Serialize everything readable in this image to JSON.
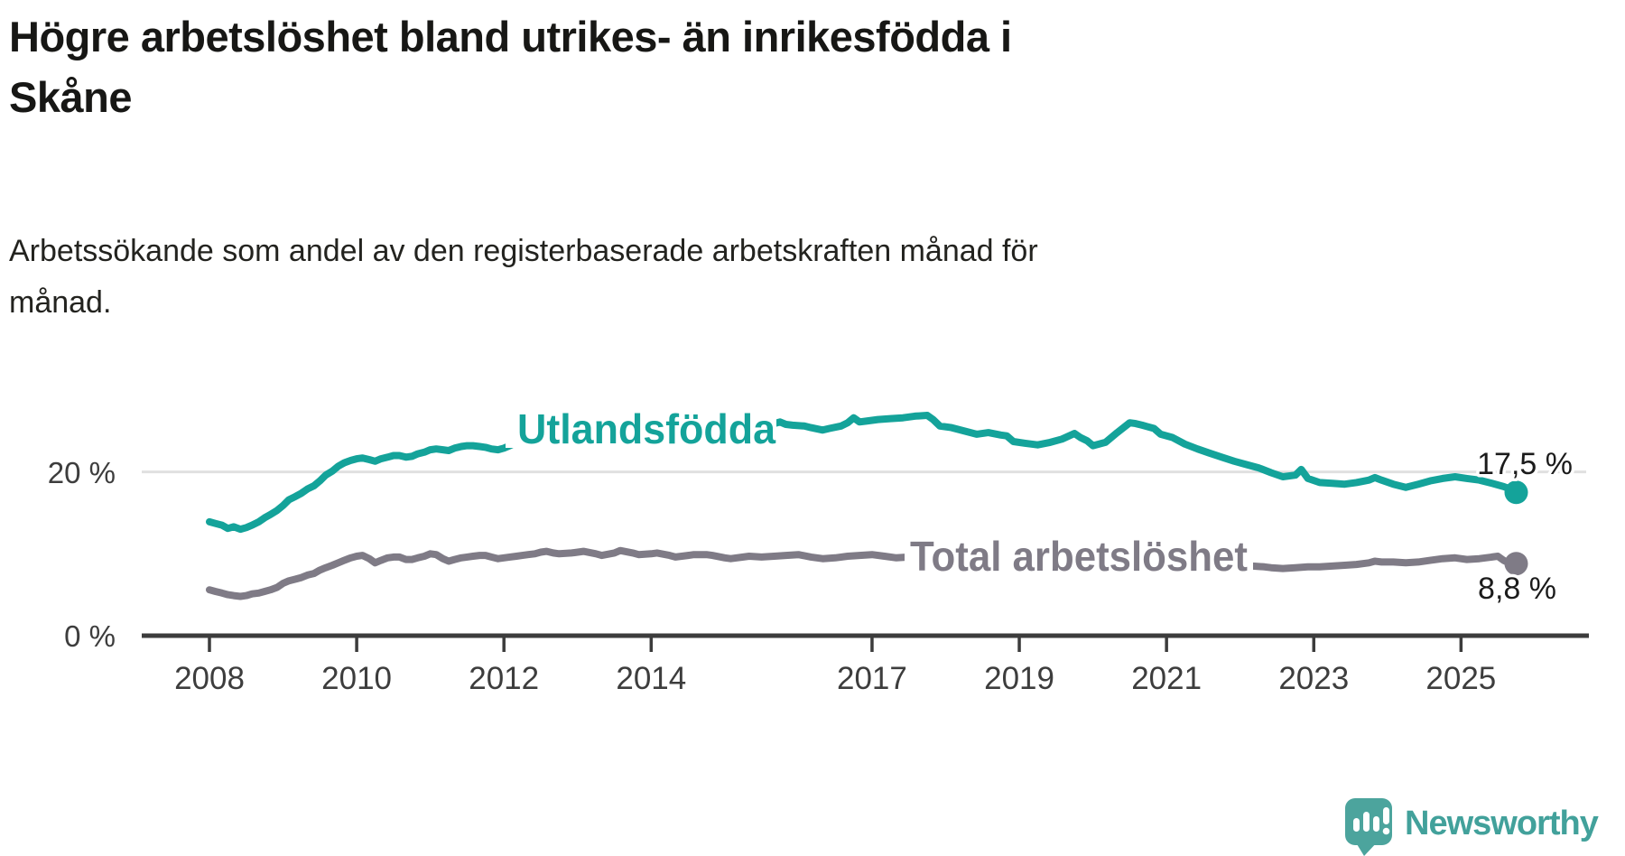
{
  "title_lines": [
    "Högre arbetslöshet bland utrikes- än inrikesfödda i",
    "Skåne"
  ],
  "subtitle_lines": [
    "Arbetssökande som andel av den registerbaserade arbetskraften månad för",
    "månad."
  ],
  "branding": {
    "logo_text": "Newsworthy",
    "logo_icon": "newsworthy-speech-bubble-bar-chart-icon",
    "logo_color": "#4ca49d",
    "logo_text_color": "#42a19b"
  },
  "colors": {
    "accent_teal": "#14a39a",
    "neutral_gray": "#7f7b86",
    "gridline": "#e0e0e0",
    "axis": "#3c3c3c",
    "value_label": "#1b1b1b"
  },
  "chart_data": {
    "type": "line",
    "title": "Högre arbetslöshet bland utrikes- än inrikesfödda i Skåne",
    "subtitle": "Arbetssökande som andel av den registerbaserade arbetskraften månad för månad.",
    "unit": "%",
    "x_tick_labels": [
      "2008",
      "2010",
      "2012",
      "2014",
      "2017",
      "2019",
      "2021",
      "2023",
      "2025"
    ],
    "y_tick_labels": [
      "0 %",
      "20 %"
    ],
    "y_ticks": [
      0,
      20
    ],
    "x_range_years": [
      2008.0,
      2025.75
    ],
    "ylim": [
      0,
      30
    ],
    "grid": "single horizontal gridline at 20 %",
    "legend_position": "labels inline on lines, value labels at line ends",
    "series": [
      {
        "name": "Utlandsfödda",
        "color": "#14a39a",
        "end_label": "17,5 %",
        "end_value": 17.5,
        "points": [
          [
            2008.0,
            13.9
          ],
          [
            2008.08,
            13.7
          ],
          [
            2008.17,
            13.5
          ],
          [
            2008.25,
            13.1
          ],
          [
            2008.33,
            13.3
          ],
          [
            2008.42,
            13.0
          ],
          [
            2008.5,
            13.2
          ],
          [
            2008.58,
            13.5
          ],
          [
            2008.67,
            13.9
          ],
          [
            2008.75,
            14.4
          ],
          [
            2008.83,
            14.8
          ],
          [
            2008.92,
            15.3
          ],
          [
            2009.0,
            15.9
          ],
          [
            2009.08,
            16.6
          ],
          [
            2009.17,
            17.0
          ],
          [
            2009.25,
            17.4
          ],
          [
            2009.33,
            17.9
          ],
          [
            2009.42,
            18.3
          ],
          [
            2009.5,
            18.9
          ],
          [
            2009.58,
            19.6
          ],
          [
            2009.67,
            20.1
          ],
          [
            2009.75,
            20.7
          ],
          [
            2009.83,
            21.1
          ],
          [
            2009.92,
            21.4
          ],
          [
            2010.0,
            21.6
          ],
          [
            2010.08,
            21.7
          ],
          [
            2010.17,
            21.5
          ],
          [
            2010.25,
            21.3
          ],
          [
            2010.33,
            21.6
          ],
          [
            2010.42,
            21.8
          ],
          [
            2010.5,
            22.0
          ],
          [
            2010.58,
            22.0
          ],
          [
            2010.67,
            21.8
          ],
          [
            2010.75,
            21.9
          ],
          [
            2010.83,
            22.2
          ],
          [
            2010.92,
            22.4
          ],
          [
            2011.0,
            22.7
          ],
          [
            2011.08,
            22.8
          ],
          [
            2011.17,
            22.7
          ],
          [
            2011.25,
            22.6
          ],
          [
            2011.33,
            22.9
          ],
          [
            2011.42,
            23.1
          ],
          [
            2011.5,
            23.2
          ],
          [
            2011.58,
            23.2
          ],
          [
            2011.67,
            23.1
          ],
          [
            2011.75,
            23.0
          ],
          [
            2011.83,
            22.8
          ],
          [
            2011.92,
            22.7
          ],
          [
            2012.0,
            22.9
          ],
          [
            2012.08,
            23.2
          ],
          [
            2012.17,
            23.6
          ],
          [
            2012.25,
            24.0
          ],
          [
            2012.33,
            24.3
          ],
          [
            2012.42,
            24.2
          ],
          [
            2012.5,
            24.0
          ],
          [
            2012.58,
            23.9
          ],
          [
            2012.67,
            23.8
          ],
          [
            2012.83,
            24.0
          ],
          [
            2013.0,
            24.3
          ],
          [
            2013.17,
            24.5
          ],
          [
            2013.33,
            24.3
          ],
          [
            2013.5,
            24.1
          ],
          [
            2013.67,
            24.3
          ],
          [
            2013.83,
            24.6
          ],
          [
            2014.0,
            24.4
          ],
          [
            2014.17,
            24.0
          ],
          [
            2014.33,
            23.6
          ],
          [
            2014.42,
            23.4
          ],
          [
            2014.58,
            23.8
          ],
          [
            2014.75,
            24.4
          ],
          [
            2014.92,
            24.8
          ],
          [
            2015.08,
            25.0
          ],
          [
            2015.25,
            25.2
          ],
          [
            2015.42,
            25.4
          ],
          [
            2015.58,
            25.7
          ],
          [
            2015.67,
            25.9
          ],
          [
            2015.75,
            26.1
          ],
          [
            2015.83,
            25.8
          ],
          [
            2015.92,
            25.7
          ],
          [
            2016.08,
            25.6
          ],
          [
            2016.17,
            25.4
          ],
          [
            2016.33,
            25.1
          ],
          [
            2016.42,
            25.3
          ],
          [
            2016.58,
            25.6
          ],
          [
            2016.67,
            26.0
          ],
          [
            2016.75,
            26.6
          ],
          [
            2016.83,
            26.1
          ],
          [
            2016.92,
            26.2
          ],
          [
            2017.08,
            26.4
          ],
          [
            2017.25,
            26.5
          ],
          [
            2017.42,
            26.6
          ],
          [
            2017.58,
            26.8
          ],
          [
            2017.75,
            26.9
          ],
          [
            2017.83,
            26.4
          ],
          [
            2017.92,
            25.6
          ],
          [
            2018.08,
            25.4
          ],
          [
            2018.25,
            25.0
          ],
          [
            2018.42,
            24.6
          ],
          [
            2018.58,
            24.8
          ],
          [
            2018.75,
            24.5
          ],
          [
            2018.83,
            24.4
          ],
          [
            2018.92,
            23.7
          ],
          [
            2019.08,
            23.5
          ],
          [
            2019.25,
            23.3
          ],
          [
            2019.42,
            23.6
          ],
          [
            2019.58,
            24.0
          ],
          [
            2019.75,
            24.7
          ],
          [
            2019.83,
            24.2
          ],
          [
            2019.92,
            23.8
          ],
          [
            2020.0,
            23.2
          ],
          [
            2020.17,
            23.6
          ],
          [
            2020.33,
            24.8
          ],
          [
            2020.5,
            26.0
          ],
          [
            2020.58,
            25.9
          ],
          [
            2020.67,
            25.7
          ],
          [
            2020.83,
            25.3
          ],
          [
            2020.92,
            24.6
          ],
          [
            2021.08,
            24.2
          ],
          [
            2021.25,
            23.4
          ],
          [
            2021.42,
            22.8
          ],
          [
            2021.58,
            22.3
          ],
          [
            2021.75,
            21.8
          ],
          [
            2021.92,
            21.3
          ],
          [
            2022.08,
            20.9
          ],
          [
            2022.25,
            20.5
          ],
          [
            2022.42,
            19.9
          ],
          [
            2022.58,
            19.4
          ],
          [
            2022.75,
            19.6
          ],
          [
            2022.83,
            20.3
          ],
          [
            2022.92,
            19.2
          ],
          [
            2023.08,
            18.7
          ],
          [
            2023.25,
            18.6
          ],
          [
            2023.42,
            18.5
          ],
          [
            2023.58,
            18.7
          ],
          [
            2023.75,
            19.0
          ],
          [
            2023.83,
            19.3
          ],
          [
            2023.92,
            19.0
          ],
          [
            2024.08,
            18.5
          ],
          [
            2024.25,
            18.1
          ],
          [
            2024.42,
            18.5
          ],
          [
            2024.58,
            18.9
          ],
          [
            2024.75,
            19.2
          ],
          [
            2024.92,
            19.4
          ],
          [
            2025.08,
            19.2
          ],
          [
            2025.25,
            19.0
          ],
          [
            2025.42,
            18.6
          ],
          [
            2025.58,
            18.2
          ],
          [
            2025.67,
            17.9
          ],
          [
            2025.75,
            17.5
          ]
        ]
      },
      {
        "name": "Total arbetslöshet",
        "color": "#7f7b86",
        "end_label": "8,8 %",
        "end_value": 8.8,
        "points": [
          [
            2008.0,
            5.6
          ],
          [
            2008.08,
            5.4
          ],
          [
            2008.17,
            5.2
          ],
          [
            2008.25,
            5.0
          ],
          [
            2008.33,
            4.9
          ],
          [
            2008.42,
            4.8
          ],
          [
            2008.5,
            4.9
          ],
          [
            2008.58,
            5.1
          ],
          [
            2008.67,
            5.2
          ],
          [
            2008.75,
            5.4
          ],
          [
            2008.83,
            5.6
          ],
          [
            2008.92,
            5.9
          ],
          [
            2009.0,
            6.4
          ],
          [
            2009.08,
            6.7
          ],
          [
            2009.17,
            6.9
          ],
          [
            2009.25,
            7.1
          ],
          [
            2009.33,
            7.4
          ],
          [
            2009.42,
            7.6
          ],
          [
            2009.5,
            8.0
          ],
          [
            2009.58,
            8.3
          ],
          [
            2009.67,
            8.6
          ],
          [
            2009.75,
            8.9
          ],
          [
            2009.83,
            9.2
          ],
          [
            2009.92,
            9.5
          ],
          [
            2010.0,
            9.7
          ],
          [
            2010.08,
            9.8
          ],
          [
            2010.17,
            9.4
          ],
          [
            2010.25,
            8.9
          ],
          [
            2010.33,
            9.2
          ],
          [
            2010.42,
            9.5
          ],
          [
            2010.5,
            9.6
          ],
          [
            2010.58,
            9.6
          ],
          [
            2010.67,
            9.3
          ],
          [
            2010.75,
            9.3
          ],
          [
            2010.83,
            9.5
          ],
          [
            2010.92,
            9.7
          ],
          [
            2011.0,
            10.0
          ],
          [
            2011.08,
            9.9
          ],
          [
            2011.17,
            9.4
          ],
          [
            2011.25,
            9.1
          ],
          [
            2011.33,
            9.3
          ],
          [
            2011.42,
            9.5
          ],
          [
            2011.5,
            9.6
          ],
          [
            2011.58,
            9.7
          ],
          [
            2011.67,
            9.8
          ],
          [
            2011.75,
            9.8
          ],
          [
            2011.83,
            9.6
          ],
          [
            2011.92,
            9.4
          ],
          [
            2012.0,
            9.5
          ],
          [
            2012.08,
            9.6
          ],
          [
            2012.17,
            9.7
          ],
          [
            2012.25,
            9.8
          ],
          [
            2012.33,
            9.9
          ],
          [
            2012.42,
            10.0
          ],
          [
            2012.5,
            10.2
          ],
          [
            2012.58,
            10.3
          ],
          [
            2012.67,
            10.1
          ],
          [
            2012.75,
            10.0
          ],
          [
            2012.92,
            10.1
          ],
          [
            2013.08,
            10.3
          ],
          [
            2013.25,
            10.0
          ],
          [
            2013.33,
            9.8
          ],
          [
            2013.5,
            10.1
          ],
          [
            2013.58,
            10.4
          ],
          [
            2013.75,
            10.1
          ],
          [
            2013.83,
            9.9
          ],
          [
            2014.0,
            10.0
          ],
          [
            2014.08,
            10.1
          ],
          [
            2014.25,
            9.8
          ],
          [
            2014.33,
            9.6
          ],
          [
            2014.5,
            9.8
          ],
          [
            2014.58,
            9.9
          ],
          [
            2014.75,
            9.9
          ],
          [
            2014.83,
            9.8
          ],
          [
            2015.0,
            9.5
          ],
          [
            2015.08,
            9.4
          ],
          [
            2015.25,
            9.6
          ],
          [
            2015.33,
            9.7
          ],
          [
            2015.5,
            9.6
          ],
          [
            2015.67,
            9.7
          ],
          [
            2015.83,
            9.8
          ],
          [
            2016.0,
            9.9
          ],
          [
            2016.17,
            9.6
          ],
          [
            2016.33,
            9.4
          ],
          [
            2016.5,
            9.5
          ],
          [
            2016.67,
            9.7
          ],
          [
            2016.83,
            9.8
          ],
          [
            2017.0,
            9.9
          ],
          [
            2017.17,
            9.7
          ],
          [
            2017.33,
            9.5
          ],
          [
            2017.5,
            9.6
          ],
          [
            2017.67,
            9.4
          ],
          [
            2017.83,
            9.3
          ],
          [
            2018.0,
            9.2
          ],
          [
            2018.25,
            9.0
          ],
          [
            2018.5,
            9.1
          ],
          [
            2018.75,
            8.9
          ],
          [
            2019.0,
            9.0
          ],
          [
            2019.25,
            9.1
          ],
          [
            2019.5,
            9.3
          ],
          [
            2019.75,
            9.4
          ],
          [
            2020.0,
            9.6
          ],
          [
            2020.25,
            10.2
          ],
          [
            2020.42,
            10.5
          ],
          [
            2020.58,
            10.6
          ],
          [
            2020.75,
            10.4
          ],
          [
            2020.92,
            10.2
          ],
          [
            2021.08,
            10.0
          ],
          [
            2021.25,
            9.8
          ],
          [
            2021.42,
            9.5
          ],
          [
            2021.58,
            9.3
          ],
          [
            2021.75,
            9.0
          ],
          [
            2021.92,
            8.8
          ],
          [
            2022.08,
            8.6
          ],
          [
            2022.17,
            8.5
          ],
          [
            2022.33,
            8.4
          ],
          [
            2022.42,
            8.3
          ],
          [
            2022.58,
            8.2
          ],
          [
            2022.75,
            8.3
          ],
          [
            2022.92,
            8.4
          ],
          [
            2023.08,
            8.4
          ],
          [
            2023.25,
            8.5
          ],
          [
            2023.42,
            8.6
          ],
          [
            2023.58,
            8.7
          ],
          [
            2023.75,
            8.9
          ],
          [
            2023.83,
            9.1
          ],
          [
            2023.92,
            9.0
          ],
          [
            2024.08,
            9.0
          ],
          [
            2024.25,
            8.9
          ],
          [
            2024.42,
            9.0
          ],
          [
            2024.58,
            9.2
          ],
          [
            2024.75,
            9.4
          ],
          [
            2024.92,
            9.5
          ],
          [
            2025.08,
            9.3
          ],
          [
            2025.25,
            9.4
          ],
          [
            2025.42,
            9.6
          ],
          [
            2025.5,
            9.7
          ],
          [
            2025.58,
            9.2
          ],
          [
            2025.67,
            8.8
          ],
          [
            2025.75,
            8.8
          ]
        ]
      }
    ]
  }
}
